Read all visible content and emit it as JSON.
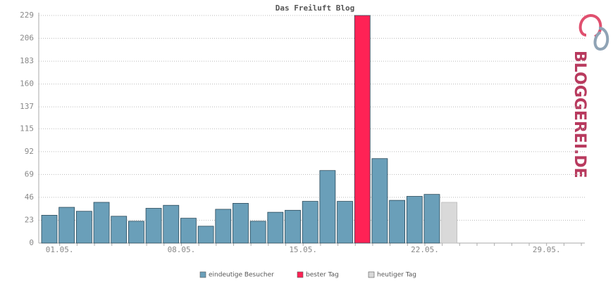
{
  "chart_data": {
    "type": "bar",
    "title": "Das Freiluft Blog",
    "logo": "BLOGGEREI.DE",
    "categories": [
      "01.05.",
      null,
      null,
      null,
      null,
      null,
      null,
      "08.05.",
      null,
      null,
      null,
      null,
      null,
      null,
      "15.05.",
      null,
      null,
      null,
      null,
      null,
      null,
      "22.05.",
      null,
      null,
      null,
      null,
      null,
      null,
      "29.05.",
      null,
      null
    ],
    "series": [
      {
        "name": "eindeutige Besucher",
        "color": "#6a9fb9",
        "values": [
          28,
          36,
          32,
          41,
          27,
          22,
          35,
          38,
          25,
          17,
          34,
          40,
          22,
          31,
          33,
          42,
          73,
          42,
          null,
          85,
          43,
          47,
          49,
          null,
          null,
          null,
          null,
          null,
          null,
          null,
          null
        ]
      },
      {
        "name": "bester Tag",
        "color": "#ff2255",
        "values": [
          null,
          null,
          null,
          null,
          null,
          null,
          null,
          null,
          null,
          null,
          null,
          null,
          null,
          null,
          null,
          null,
          null,
          null,
          229,
          null,
          null,
          null,
          null,
          null,
          null,
          null,
          null,
          null,
          null,
          null,
          null
        ]
      },
      {
        "name": "heutiger Tag",
        "color": "#d9d9d9",
        "values": [
          null,
          null,
          null,
          null,
          null,
          null,
          null,
          null,
          null,
          null,
          null,
          null,
          null,
          null,
          null,
          null,
          null,
          null,
          null,
          null,
          null,
          null,
          null,
          41,
          null,
          null,
          null,
          null,
          null,
          null,
          null
        ]
      }
    ],
    "ylim": [
      0,
      229
    ],
    "yticks": [
      0,
      23,
      46,
      69,
      92,
      115,
      137,
      160,
      183,
      206,
      229
    ],
    "grid": true
  }
}
